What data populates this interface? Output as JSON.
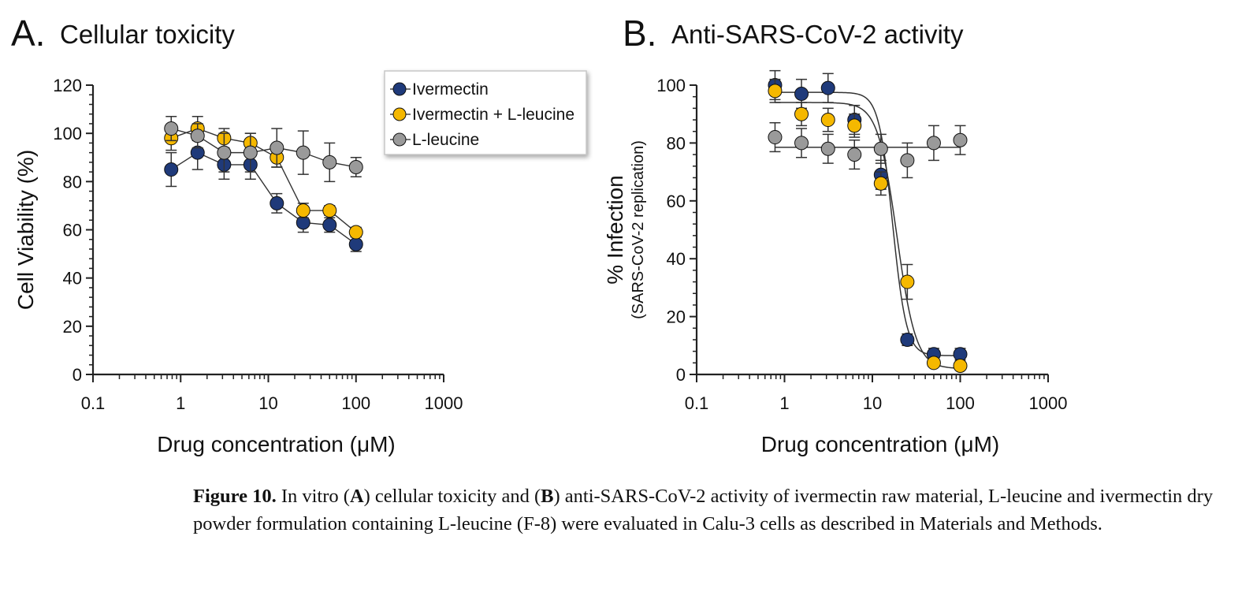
{
  "figure": {
    "panels": [
      {
        "letter": "A.",
        "title": "Cellular toxicity"
      },
      {
        "letter": "B.",
        "title": "Anti-SARS-CoV-2 activity"
      }
    ],
    "legend": [
      "Ivermectin",
      "Ivermectin + L-leucine",
      "L-leucine"
    ]
  },
  "caption": {
    "label": "Figure 10.",
    "p1": " In vitro (",
    "a": "A",
    "p2": ") cellular toxicity and (",
    "b": "B",
    "p3": ") anti-SARS-CoV-2 activity of ivermectin raw material, L-leucine and ivermectin dry powder formulation containing L-leucine (F-8) were evaluated in Calu-3 cells as described in Materials and Methods."
  },
  "colors": {
    "ivermectin": "#1f3a7a",
    "ivermectin_leucine": "#f5b800",
    "leucine": "#9a9a9a",
    "axis": "#222222"
  },
  "chart_data": [
    {
      "type": "scatter",
      "panel": "A",
      "title": "Cellular toxicity",
      "xlabel": "Drug concentration (μM)",
      "ylabel": "Cell Viability (%)",
      "xscale": "log",
      "xlim": [
        0.1,
        1000
      ],
      "ylim": [
        0,
        120
      ],
      "xticks": [
        "0.1",
        "1",
        "10",
        "100",
        "1000"
      ],
      "yticks": [
        "0",
        "20",
        "40",
        "60",
        "80",
        "100",
        "120"
      ],
      "legend_position": "top-right",
      "series": [
        {
          "name": "Ivermectin",
          "x": [
            0.78,
            1.56,
            3.13,
            6.25,
            12.5,
            25,
            50,
            100
          ],
          "y": [
            85,
            92,
            87,
            87,
            71,
            63,
            62,
            54
          ],
          "err": [
            7,
            7,
            6,
            6,
            4,
            4,
            3,
            3
          ]
        },
        {
          "name": "Ivermectin + L-leucine",
          "x": [
            0.78,
            1.56,
            3.13,
            6.25,
            12.5,
            25,
            50,
            100
          ],
          "y": [
            98,
            102,
            98,
            96,
            90,
            68,
            68,
            59
          ],
          "err": [
            5,
            5,
            4,
            4,
            4,
            3,
            2,
            2
          ]
        },
        {
          "name": "L-leucine",
          "x": [
            0.78,
            1.56,
            3.13,
            6.25,
            12.5,
            25,
            50,
            100
          ],
          "y": [
            102,
            99,
            92,
            92,
            94,
            92,
            88,
            86
          ],
          "err": [
            5,
            5,
            8,
            8,
            8,
            9,
            8,
            4
          ]
        }
      ]
    },
    {
      "type": "scatter",
      "panel": "B",
      "title": "Anti-SARS-CoV-2 activity",
      "xlabel": "Drug concentration (μM)",
      "ylabel": "% Infection",
      "ylabel2": "(SARS-CoV-2 replication)",
      "xscale": "log",
      "xlim": [
        0.1,
        1000
      ],
      "ylim": [
        0,
        100
      ],
      "xticks": [
        "0.1",
        "1",
        "10",
        "100",
        "1000"
      ],
      "yticks": [
        "0",
        "20",
        "40",
        "60",
        "80",
        "100"
      ],
      "series": [
        {
          "name": "Ivermectin",
          "x": [
            0.78,
            1.56,
            3.13,
            6.25,
            12.5,
            25,
            50,
            100
          ],
          "y": [
            100,
            97,
            99,
            88,
            69,
            12,
            7,
            7
          ],
          "err": [
            5,
            5,
            5,
            5,
            5,
            2,
            2,
            2
          ],
          "fit": {
            "top": 97.5,
            "bottom": 6.5,
            "ec50": 17,
            "hill": 5.5
          }
        },
        {
          "name": "Ivermectin + L-leucine",
          "x": [
            0.78,
            1.56,
            3.13,
            6.25,
            12.5,
            25,
            50,
            100
          ],
          "y": [
            98,
            90,
            88,
            86,
            66,
            32,
            4,
            3
          ],
          "err": [
            4,
            4,
            4,
            4,
            4,
            6,
            1,
            1
          ],
          "fit": {
            "top": 94,
            "bottom": 2,
            "ec50": 19,
            "hill": 4
          }
        },
        {
          "name": "L-leucine",
          "x": [
            0.78,
            1.56,
            3.13,
            6.25,
            12.5,
            25,
            50,
            100
          ],
          "y": [
            82,
            80,
            78,
            76,
            78,
            74,
            80,
            81
          ],
          "err": [
            5,
            5,
            5,
            5,
            5,
            6,
            6,
            5
          ],
          "fit": {
            "top": 78.5,
            "bottom": 78.5,
            "ec50": 10,
            "hill": 1
          }
        }
      ]
    }
  ]
}
